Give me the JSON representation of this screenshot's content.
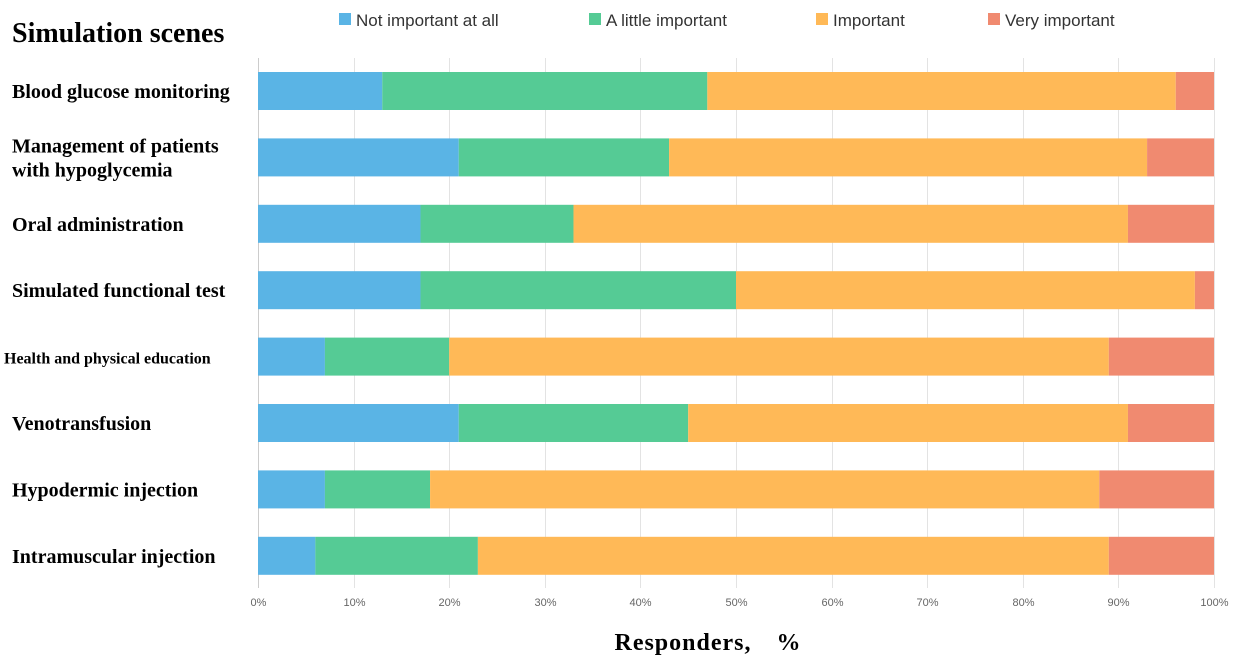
{
  "chart_data": {
    "type": "bar",
    "orientation": "horizontal",
    "stacked": true,
    "title": "Simulation scenes",
    "xlabel": "Responders,　%",
    "ylabel": "",
    "xlim": [
      0,
      100
    ],
    "x_ticks": [
      "0%",
      "10%",
      "20%",
      "30%",
      "40%",
      "50%",
      "60%",
      "70%",
      "80%",
      "90%",
      "100%"
    ],
    "grid": true,
    "legend_position": "top",
    "categories": [
      [
        "Blood glucose monitoring"
      ],
      [
        "Management of patients",
        "with hypoglycemia"
      ],
      [
        "Oral administration"
      ],
      [
        "Simulated functional test"
      ],
      [
        "Health and physical education"
      ],
      [
        "Venotransfusion"
      ],
      [
        "Hypodermic injection"
      ],
      [
        "Intramuscular injection"
      ]
    ],
    "series": [
      {
        "name": "Not important at all",
        "color": "#5ab4e5",
        "values": [
          13,
          21,
          17,
          17,
          7,
          21,
          7,
          6
        ]
      },
      {
        "name": "A little important",
        "color": "#55cb95",
        "values": [
          34,
          22,
          16,
          33,
          13,
          24,
          11,
          17
        ]
      },
      {
        "name": "Important",
        "color": "#ffb957",
        "values": [
          49,
          50,
          58,
          48,
          69,
          46,
          70,
          66
        ]
      },
      {
        "name": "Very important",
        "color": "#f08a70",
        "values": [
          4,
          7,
          9,
          2,
          11,
          9,
          12,
          11
        ]
      }
    ]
  }
}
